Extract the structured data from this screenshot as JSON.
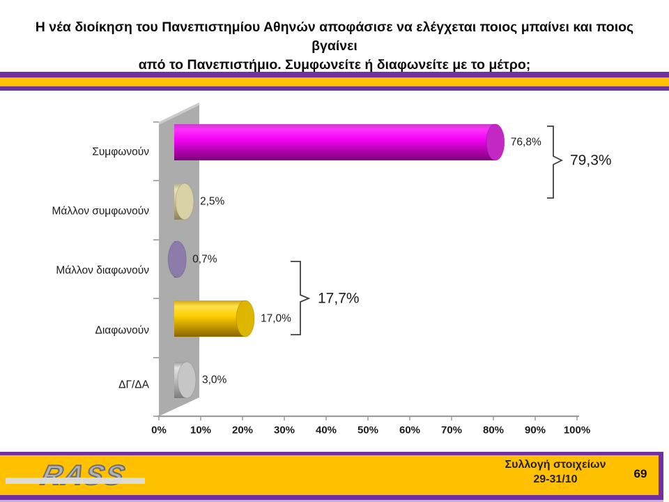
{
  "chart_data": {
    "type": "bar",
    "orientation": "horizontal",
    "title": "Η νέα διοίκηση του Πανεπιστημίου Αθηνών αποφάσισε να ελέγχεται ποιος μπαίνει και ποιος βγαίνει\nαπό το Πανεπιστήμιο. Συμφωνείτε ή διαφωνείτε με το μέτρο;",
    "categories": [
      "Συμφωνούν",
      "Μάλλον συμφωνούν",
      "Μάλλον διαφωνούν",
      "Διαφωνούν",
      "ΔΓ/ΔΑ"
    ],
    "values": [
      76.8,
      2.5,
      0.7,
      17.0,
      3.0
    ],
    "value_labels": [
      "76,8%",
      "2,5%",
      "0,7%",
      "17,0%",
      "3,0%"
    ],
    "bars": [
      {
        "category": "Συμφωνούν",
        "value": 76.8,
        "label": "76,8%",
        "colors": {
          "top": "#c93fc9",
          "light": "#ff30ff",
          "main": "#f204f2",
          "dark": "#7d0079",
          "cap": "#c428c4"
        }
      },
      {
        "category": "Μάλλον συμφωνούν",
        "value": 2.5,
        "label": "2,5%",
        "colors": {
          "top": "#b7ad85",
          "light": "#e6e0bb",
          "main": "#d6cfa2",
          "dark": "#8d8259",
          "cap": "#d9d2a6"
        }
      },
      {
        "category": "Μάλλον διαφωνούν",
        "value": 0.7,
        "label": "0,7%",
        "colors": {
          "top": "#7a6a96",
          "light": "#a496bd",
          "main": "#8f7fae",
          "dark": "#574677",
          "cap": "#8d7ca9"
        }
      },
      {
        "category": "Διαφωνούν",
        "value": 17.0,
        "label": "17,0%",
        "colors": {
          "top": "#d1a60e",
          "light": "#ffe14d",
          "main": "#ffd000",
          "dark": "#8a6500",
          "cap": "#deb600"
        }
      },
      {
        "category": "ΔΓ/ΔΑ",
        "value": 3.0,
        "label": "3,0%",
        "colors": {
          "top": "#9c9c9c",
          "light": "#e2e2e2",
          "main": "#c9c9c9",
          "dark": "#7b7b7b",
          "cap": "#c6c6c6"
        }
      }
    ],
    "x_ticks": [
      "0%",
      "10%",
      "20%",
      "30%",
      "40%",
      "50%",
      "60%",
      "70%",
      "80%",
      "90%",
      "100%"
    ],
    "xlim": [
      0,
      100
    ],
    "grid": false,
    "legend": false,
    "wall_color": "#acacac",
    "groups": [
      {
        "label": "79,3%",
        "sum_of": [
          "Συμφωνούν",
          "Μάλλον συμφωνούν"
        ]
      },
      {
        "label": "17,7%",
        "sum_of": [
          "Μάλλον διαφωνούν",
          "Διαφωνούν"
        ]
      }
    ]
  },
  "top_band": {
    "purple": "#7030A0",
    "light_purple": "#B79CD1",
    "yellow": "#FFC000"
  },
  "footer": {
    "logo_text": "RASS",
    "note_line1": "Συλλογή στοιχείων",
    "note_line2": "29-31/10",
    "page_number": "69",
    "band_yellow": "#FFC000",
    "band_purple": "#7030A0"
  }
}
